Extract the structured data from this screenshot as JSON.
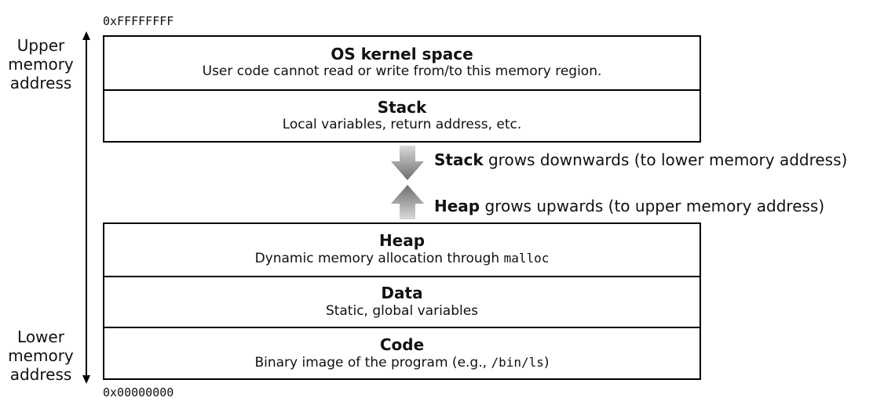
{
  "addresses": {
    "top": "0xFFFFFFFF",
    "bottom": "0x00000000"
  },
  "axis": {
    "upper_label": [
      "Upper",
      "memory",
      "address"
    ],
    "lower_label": [
      "Lower",
      "memory",
      "address"
    ]
  },
  "upper_regions": [
    {
      "title": "OS kernel space",
      "desc": "User code cannot read or write from/to this memory region."
    },
    {
      "title": "Stack",
      "desc": "Local variables, return address, etc."
    }
  ],
  "lower_regions": [
    {
      "title": "Heap",
      "desc": "Dynamic memory allocation through ",
      "desc_code": "malloc",
      "desc_after": ""
    },
    {
      "title": "Data",
      "desc": "Static, global variables",
      "desc_code": "",
      "desc_after": ""
    },
    {
      "title": "Code",
      "desc": "Binary image of the program (e.g., ",
      "desc_code": "/bin/ls",
      "desc_after": ")"
    }
  ],
  "growth": {
    "stack": {
      "bold": "Stack",
      "rest": " grows downwards (to lower memory address)"
    },
    "heap": {
      "bold": "Heap",
      "rest": " grows upwards (to upper memory address)"
    }
  },
  "colors": {
    "arrow_top": "#d9d9d9",
    "arrow_bottom": "#6e6e6e",
    "border": "#000000"
  }
}
